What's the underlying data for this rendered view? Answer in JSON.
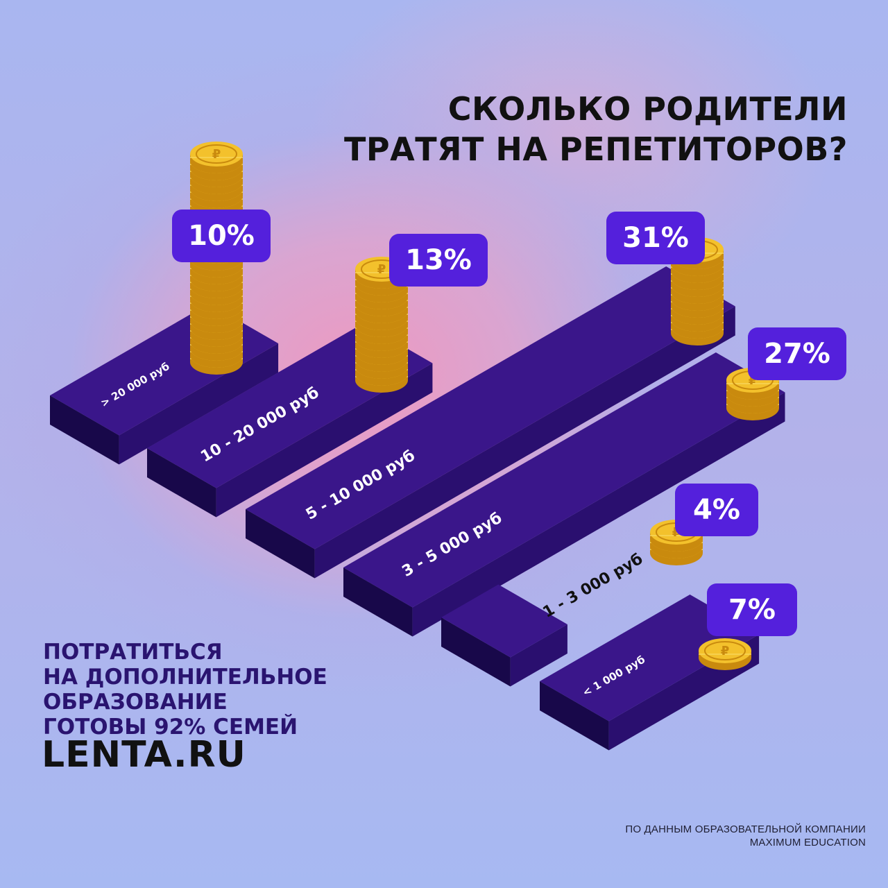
{
  "title": {
    "line1": "СКОЛЬКО РОДИТЕЛИ",
    "line2": "ТРАТЯТ НА РЕПЕТИТОРОВ?"
  },
  "note": {
    "line1": "ПОТРАТИТЬСЯ",
    "line2": "НА ДОПОЛНИТЕЛЬНОЕ",
    "line3": "ОБРАЗОВАНИЕ",
    "line4": "ГОТОВЫ 92% СЕМЕЙ"
  },
  "logo": "LENTA.RU",
  "source": {
    "line1": "ПО ДАННЫМ ОБРАЗОВАТЕЛЬНОЙ КОМПАНИИ",
    "line2": "MAXIMUM EDUCATION"
  },
  "colors": {
    "block_top": "#3a168a",
    "block_left": "#1d0a58",
    "block_right": "#2a0f6f",
    "badge": "#5420dc",
    "coin": "#f3c12c",
    "coin_edge": "#c98a0e",
    "text_dark": "#111111"
  },
  "chart_data": {
    "type": "bar",
    "title": "СКОЛЬКО РОДИТЕЛИ ТРАТЯТ НА РЕПЕТИТОРОВ?",
    "categories": [
      "> 20 000 руб",
      "10 - 20 000 руб",
      "5 - 10 000 руб",
      "3 - 5 000 руб",
      "1 - 3 000 руб",
      "< 1 000 руб"
    ],
    "value_labels": [
      "10%",
      "13%",
      "31%",
      "27%",
      "4%",
      "7%"
    ],
    "values": [
      10,
      13,
      31,
      27,
      4,
      7
    ],
    "unit": "%"
  }
}
